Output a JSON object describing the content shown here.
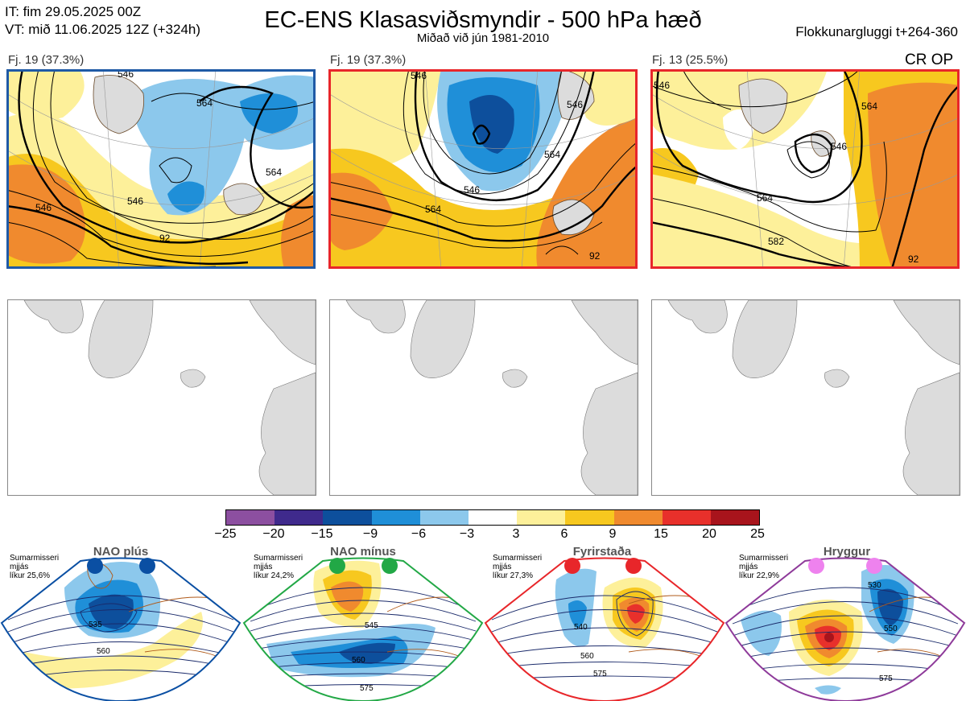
{
  "header": {
    "it_line": "IT: fim 29.05.2025 00Z",
    "vt_line": "VT: mið 11.06.2025 12Z  (+324h)",
    "title": "EC-ENS Klasasviðsmyndir - 500 hPa hæð",
    "subtitle": "Miðað við jún 1981-2010",
    "window": "Flokkunargluggi t+264-360"
  },
  "panels": [
    {
      "label": "Fj. 19 (37.3%)",
      "border": "#1f5aa6",
      "contours": [
        "546",
        "564",
        "546",
        "564",
        "546",
        "92"
      ]
    },
    {
      "label": "Fj. 19 (37.3%)",
      "border": "#e8262a",
      "contours": [
        "546",
        "546",
        "564",
        "564",
        "546",
        "92"
      ]
    },
    {
      "label": "Fj. 13 (25.5%)",
      "border": "#e8262a",
      "contours": [
        "546",
        "564",
        "546",
        "564",
        "582",
        "92"
      ]
    }
  ],
  "crop_label": "CR OP",
  "colorbar": {
    "ticks": [
      "−25",
      "−20",
      "−15",
      "−9",
      "−6",
      "−3",
      "3",
      "6",
      "9",
      "15",
      "20",
      "25"
    ],
    "colors": [
      "#8c4fa0",
      "#3f2a8c",
      "#0d4f9c",
      "#1f8fd8",
      "#8cc8ec",
      "#ffffff",
      "#fdf09a",
      "#f7c81f",
      "#f08a2e",
      "#e8302b",
      "#a8141c"
    ]
  },
  "regimes": [
    {
      "name": "NAO plús",
      "l1": "Sumarmisseri",
      "l2": "mjjás",
      "l3": "líkur 25,6%",
      "dot": "#0a4fa3",
      "border": "#0a4fa3",
      "contours": [
        "535",
        "560"
      ]
    },
    {
      "name": "NAO mínus",
      "l1": "Sumarmisseri",
      "l2": "mjjás",
      "l3": "líkur 24,2%",
      "dot": "#22a846",
      "border": "#22a846",
      "contours": [
        "545",
        "560",
        "575"
      ]
    },
    {
      "name": "Fyrirstaða",
      "l1": "Sumarmisseri",
      "l2": "mjjás",
      "l3": "líkur 27,3%",
      "dot": "#e8262a",
      "border": "#e8262a",
      "contours": [
        "540",
        "560",
        "575"
      ]
    },
    {
      "name": "Hryggur",
      "l1": "Sumarmisseri",
      "l2": "mjjás",
      "l3": "líkur 22,9%",
      "dot": "#ee82ee",
      "border": "#8e3a9a",
      "contours": [
        "530",
        "550",
        "575"
      ]
    }
  ]
}
